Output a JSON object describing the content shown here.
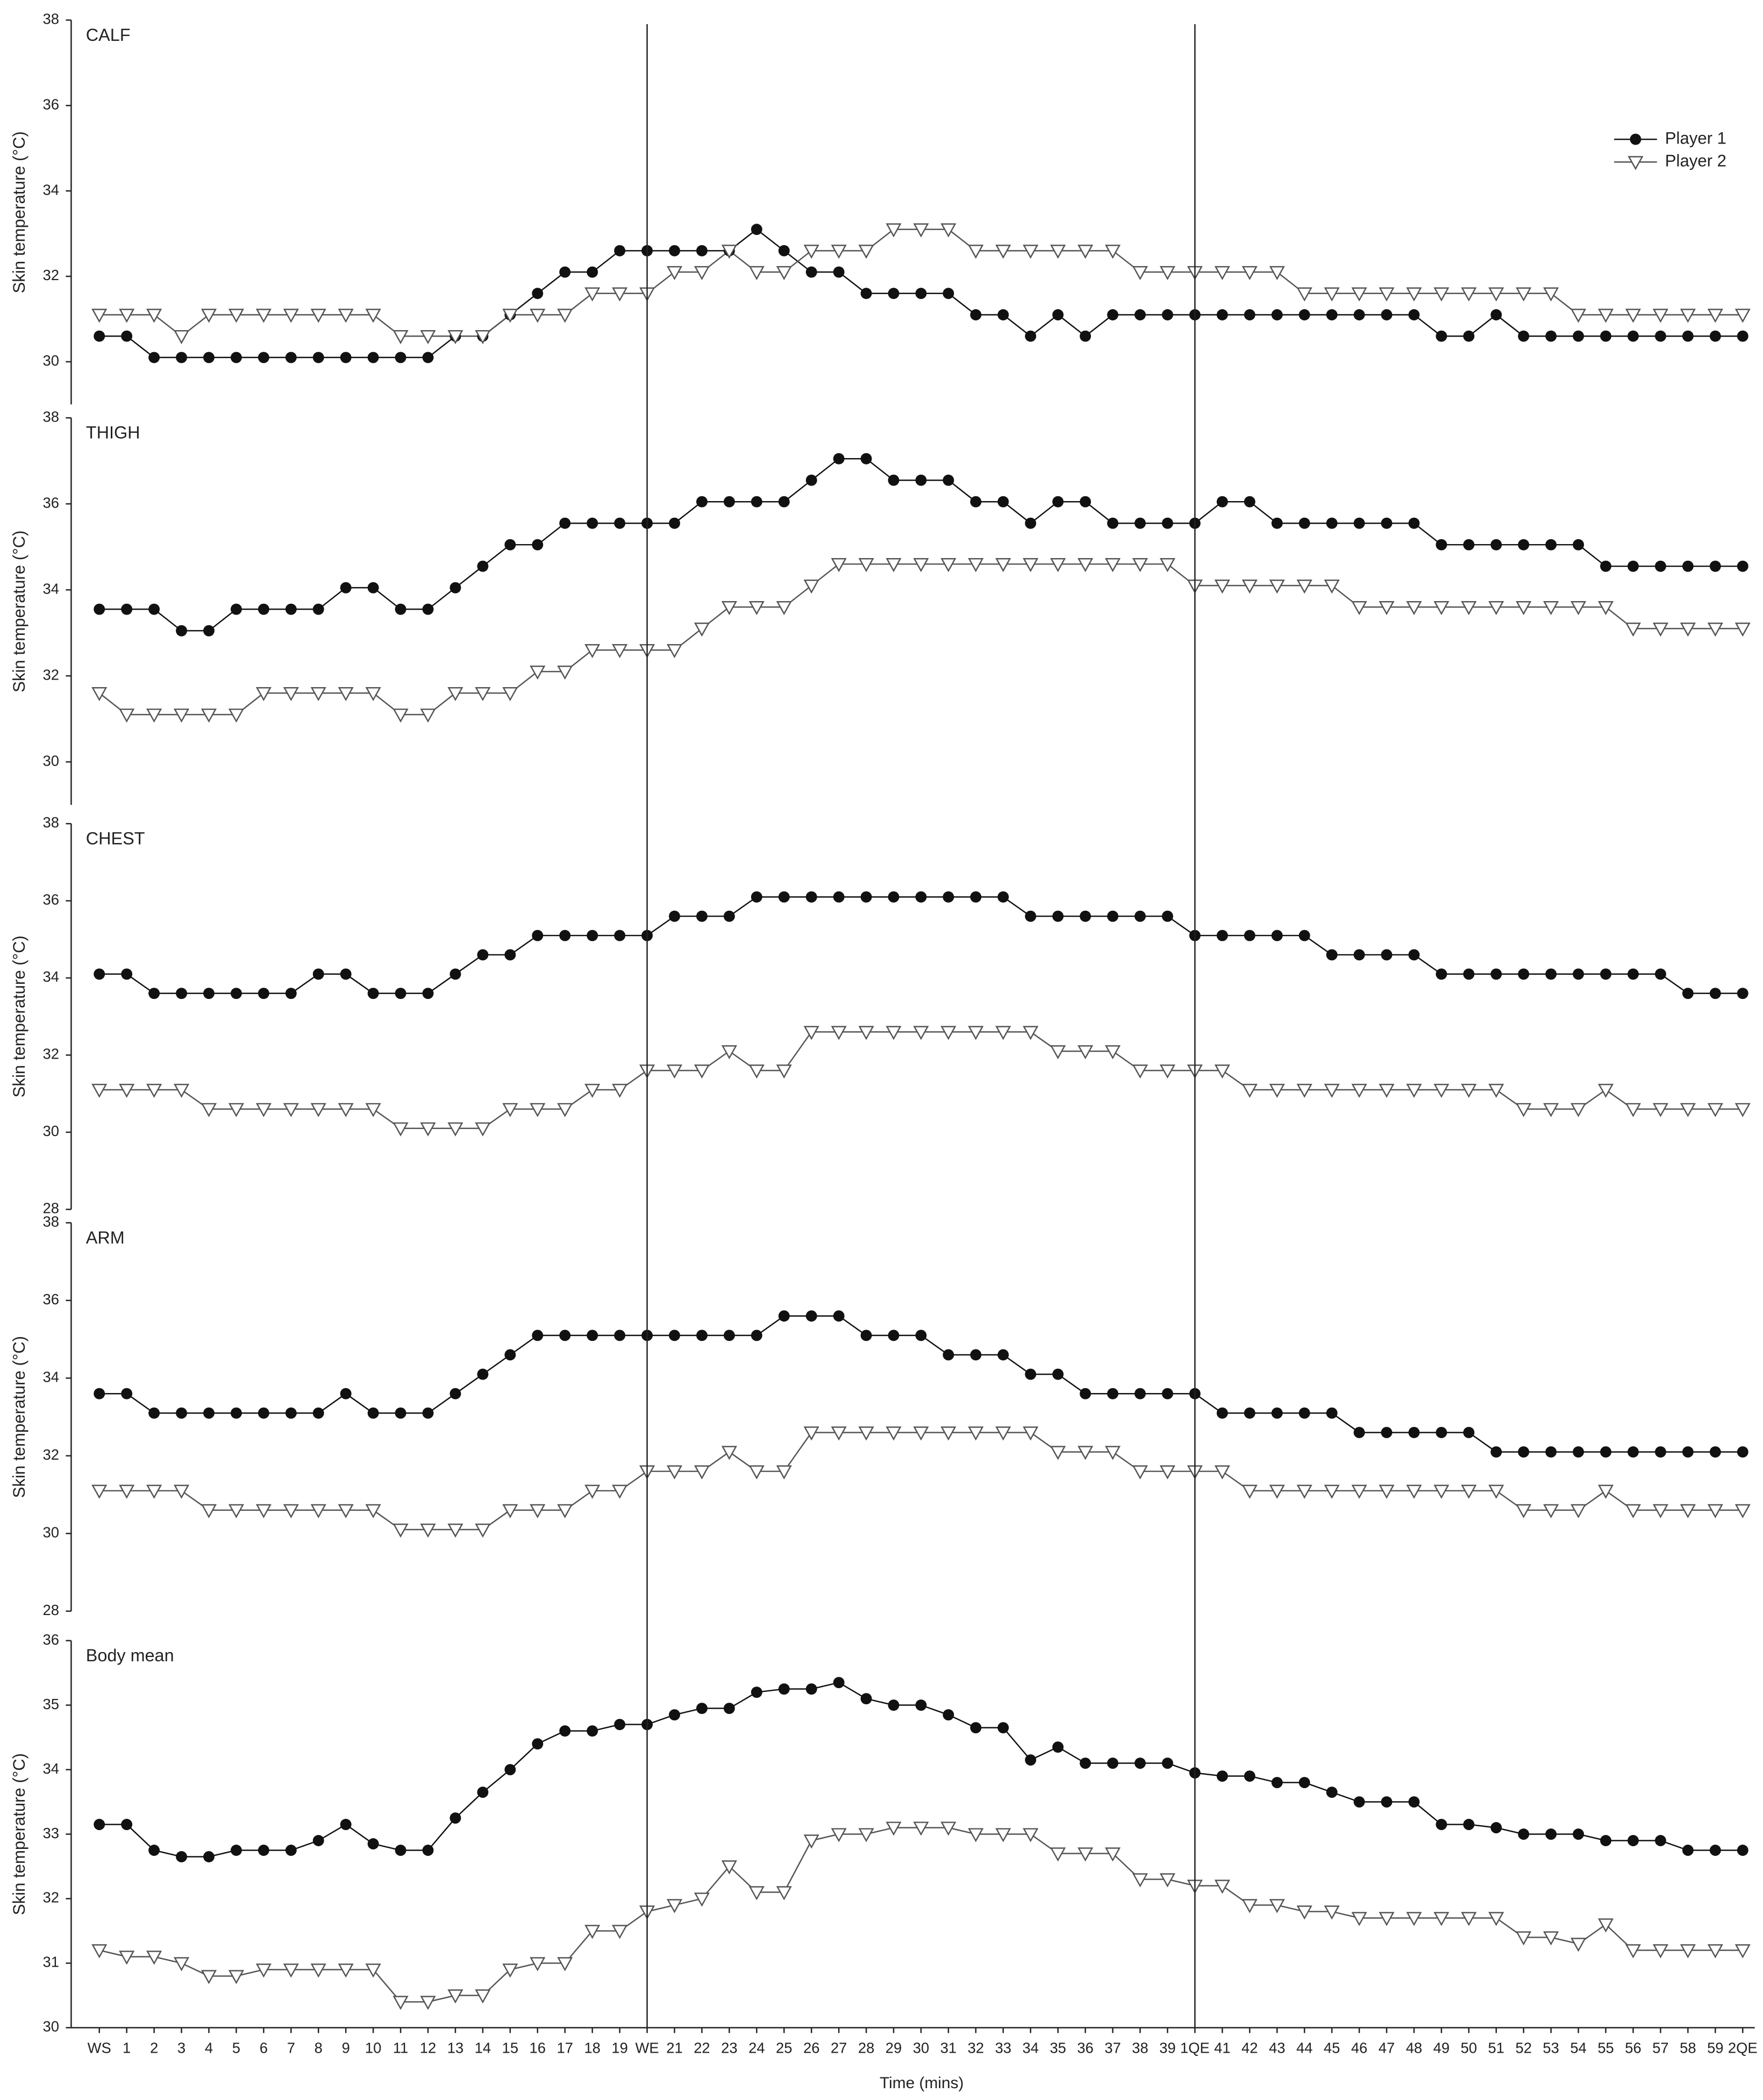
{
  "chart_data": {
    "type": "line",
    "x_label": "Time (mins)",
    "y_label": "Skin temperature (°C)",
    "legend": "upper right",
    "categories": [
      "WS",
      "1",
      "2",
      "3",
      "4",
      "5",
      "6",
      "7",
      "8",
      "9",
      "10",
      "11",
      "12",
      "13",
      "14",
      "15",
      "16",
      "17",
      "18",
      "19",
      "WE",
      "21",
      "22",
      "23",
      "24",
      "25",
      "26",
      "27",
      "28",
      "29",
      "30",
      "31",
      "32",
      "33",
      "34",
      "35",
      "36",
      "37",
      "38",
      "39",
      "1QE",
      "41",
      "42",
      "43",
      "44",
      "45",
      "46",
      "47",
      "48",
      "49",
      "50",
      "51",
      "52",
      "53",
      "54",
      "55",
      "56",
      "57",
      "58",
      "59",
      "2QE"
    ],
    "series": [
      {
        "name": "Player 1",
        "color": "#111111",
        "marker": "circle"
      },
      {
        "name": "Player 2",
        "color": "#555555",
        "marker": "triangle-down"
      }
    ],
    "panels": [
      {
        "title": "CALF",
        "ylim": [
          29,
          38
        ],
        "yticks": [
          30,
          32,
          34,
          36,
          38
        ],
        "values": [
          [
            30.6,
            30.6,
            30.1,
            30.1,
            30.1,
            30.1,
            30.1,
            30.1,
            30.1,
            30.1,
            30.1,
            30.1,
            30.1,
            30.6,
            30.6,
            31.1,
            31.6,
            32.1,
            32.1,
            32.6,
            32.6,
            32.6,
            32.6,
            32.6,
            33.1,
            32.6,
            32.1,
            32.1,
            31.6,
            31.6,
            31.6,
            31.6,
            31.1,
            31.1,
            30.6,
            31.1,
            30.6,
            31.1,
            31.1,
            31.1,
            31.1,
            31.1,
            31.1,
            31.1,
            31.1,
            31.1,
            31.1,
            31.1,
            31.1,
            30.6,
            30.6,
            31.1,
            30.6,
            30.6,
            30.6,
            30.6,
            30.6,
            30.6,
            30.6,
            30.6,
            30.6
          ],
          [
            31.1,
            31.1,
            31.1,
            30.6,
            31.1,
            31.1,
            31.1,
            31.1,
            31.1,
            31.1,
            31.1,
            30.6,
            30.6,
            30.6,
            30.6,
            31.1,
            31.1,
            31.1,
            31.6,
            31.6,
            31.6,
            32.1,
            32.1,
            32.6,
            32.1,
            32.1,
            32.6,
            32.6,
            32.6,
            33.1,
            33.1,
            33.1,
            32.6,
            32.6,
            32.6,
            32.6,
            32.6,
            32.6,
            32.1,
            32.1,
            32.1,
            32.1,
            32.1,
            32.1,
            31.6,
            31.6,
            31.6,
            31.6,
            31.6,
            31.6,
            31.6,
            31.6,
            31.6,
            31.6,
            31.1,
            31.1,
            31.1,
            31.1,
            31.1,
            31.1,
            31.1
          ]
        ]
      },
      {
        "title": "THIGH",
        "ylim": [
          29,
          38
        ],
        "yticks": [
          30,
          32,
          34,
          36,
          38
        ],
        "values": [
          [
            33.55,
            33.55,
            33.55,
            33.05,
            33.05,
            33.55,
            33.55,
            33.55,
            33.55,
            34.05,
            34.05,
            33.55,
            33.55,
            34.05,
            34.55,
            35.05,
            35.05,
            35.55,
            35.55,
            35.55,
            35.55,
            35.55,
            36.05,
            36.05,
            36.05,
            36.05,
            36.55,
            37.05,
            37.05,
            36.55,
            36.55,
            36.55,
            36.05,
            36.05,
            35.55,
            36.05,
            36.05,
            35.55,
            35.55,
            35.55,
            35.55,
            36.05,
            36.05,
            35.55,
            35.55,
            35.55,
            35.55,
            35.55,
            35.55,
            35.05,
            35.05,
            35.05,
            35.05,
            35.05,
            35.05,
            34.55,
            34.55,
            34.55,
            34.55,
            34.55,
            34.55
          ],
          [
            31.6,
            31.1,
            31.1,
            31.1,
            31.1,
            31.1,
            31.6,
            31.6,
            31.6,
            31.6,
            31.6,
            31.1,
            31.1,
            31.6,
            31.6,
            31.6,
            32.1,
            32.1,
            32.6,
            32.6,
            32.6,
            32.6,
            33.1,
            33.6,
            33.6,
            33.6,
            34.1,
            34.6,
            34.6,
            34.6,
            34.6,
            34.6,
            34.6,
            34.6,
            34.6,
            34.6,
            34.6,
            34.6,
            34.6,
            34.6,
            34.1,
            34.1,
            34.1,
            34.1,
            34.1,
            34.1,
            33.6,
            33.6,
            33.6,
            33.6,
            33.6,
            33.6,
            33.6,
            33.6,
            33.6,
            33.6,
            33.1,
            33.1,
            33.1,
            33.1,
            33.1
          ]
        ]
      },
      {
        "title": "CHEST",
        "ylim": [
          28,
          38
        ],
        "yticks": [
          28,
          30,
          32,
          34,
          36,
          38
        ],
        "values": [
          [
            34.1,
            34.1,
            33.6,
            33.6,
            33.6,
            33.6,
            33.6,
            33.6,
            34.1,
            34.1,
            33.6,
            33.6,
            33.6,
            34.1,
            34.6,
            34.6,
            35.1,
            35.1,
            35.1,
            35.1,
            35.1,
            35.6,
            35.6,
            35.6,
            36.1,
            36.1,
            36.1,
            36.1,
            36.1,
            36.1,
            36.1,
            36.1,
            36.1,
            36.1,
            35.6,
            35.6,
            35.6,
            35.6,
            35.6,
            35.6,
            35.1,
            35.1,
            35.1,
            35.1,
            35.1,
            34.6,
            34.6,
            34.6,
            34.6,
            34.1,
            34.1,
            34.1,
            34.1,
            34.1,
            34.1,
            34.1,
            34.1,
            34.1,
            33.6,
            33.6,
            33.6
          ],
          [
            31.1,
            31.1,
            31.1,
            31.1,
            30.6,
            30.6,
            30.6,
            30.6,
            30.6,
            30.6,
            30.6,
            30.1,
            30.1,
            30.1,
            30.1,
            30.6,
            30.6,
            30.6,
            31.1,
            31.1,
            31.6,
            31.6,
            31.6,
            32.1,
            31.6,
            31.6,
            32.6,
            32.6,
            32.6,
            32.6,
            32.6,
            32.6,
            32.6,
            32.6,
            32.6,
            32.1,
            32.1,
            32.1,
            31.6,
            31.6,
            31.6,
            31.6,
            31.1,
            31.1,
            31.1,
            31.1,
            31.1,
            31.1,
            31.1,
            31.1,
            31.1,
            31.1,
            30.6,
            30.6,
            30.6,
            31.1,
            30.6,
            30.6,
            30.6,
            30.6,
            30.6
          ]
        ]
      },
      {
        "title": "ARM",
        "ylim": [
          28,
          38
        ],
        "yticks": [
          28,
          30,
          32,
          34,
          36,
          38
        ],
        "values": [
          [
            33.6,
            33.6,
            33.1,
            33.1,
            33.1,
            33.1,
            33.1,
            33.1,
            33.1,
            33.6,
            33.1,
            33.1,
            33.1,
            33.6,
            34.1,
            34.6,
            35.1,
            35.1,
            35.1,
            35.1,
            35.1,
            35.1,
            35.1,
            35.1,
            35.1,
            35.6,
            35.6,
            35.6,
            35.1,
            35.1,
            35.1,
            34.6,
            34.6,
            34.6,
            34.1,
            34.1,
            33.6,
            33.6,
            33.6,
            33.6,
            33.6,
            33.1,
            33.1,
            33.1,
            33.1,
            33.1,
            32.6,
            32.6,
            32.6,
            32.6,
            32.6,
            32.1,
            32.1,
            32.1,
            32.1,
            32.1,
            32.1,
            32.1,
            32.1,
            32.1,
            32.1
          ],
          [
            31.1,
            31.1,
            31.1,
            31.1,
            30.6,
            30.6,
            30.6,
            30.6,
            30.6,
            30.6,
            30.6,
            30.1,
            30.1,
            30.1,
            30.1,
            30.6,
            30.6,
            30.6,
            31.1,
            31.1,
            31.6,
            31.6,
            31.6,
            32.1,
            31.6,
            31.6,
            32.6,
            32.6,
            32.6,
            32.6,
            32.6,
            32.6,
            32.6,
            32.6,
            32.6,
            32.1,
            32.1,
            32.1,
            31.6,
            31.6,
            31.6,
            31.6,
            31.1,
            31.1,
            31.1,
            31.1,
            31.1,
            31.1,
            31.1,
            31.1,
            31.1,
            31.1,
            30.6,
            30.6,
            30.6,
            31.1,
            30.6,
            30.6,
            30.6,
            30.6,
            30.6
          ]
        ]
      },
      {
        "title": "Body mean",
        "ylim": [
          30,
          36
        ],
        "yticks": [
          30,
          31,
          32,
          33,
          34,
          35,
          36
        ],
        "values": [
          [
            33.15,
            33.15,
            32.75,
            32.65,
            32.65,
            32.75,
            32.75,
            32.75,
            32.9,
            33.15,
            32.85,
            32.75,
            32.75,
            33.25,
            33.65,
            34.0,
            34.4,
            34.6,
            34.6,
            34.7,
            34.7,
            34.85,
            34.95,
            34.95,
            35.2,
            35.25,
            35.25,
            35.35,
            35.1,
            35.0,
            35.0,
            34.85,
            34.65,
            34.65,
            34.15,
            34.35,
            34.1,
            34.1,
            34.1,
            34.1,
            33.95,
            33.9,
            33.9,
            33.8,
            33.8,
            33.65,
            33.5,
            33.5,
            33.5,
            33.15,
            33.15,
            33.1,
            33.0,
            33.0,
            33.0,
            32.9,
            32.9,
            32.9,
            32.75,
            32.75,
            32.75
          ],
          [
            31.2,
            31.1,
            31.1,
            31.0,
            30.8,
            30.8,
            30.9,
            30.9,
            30.9,
            30.9,
            30.9,
            30.4,
            30.4,
            30.5,
            30.5,
            30.9,
            31.0,
            31.0,
            31.5,
            31.5,
            31.8,
            31.9,
            32.0,
            32.5,
            32.1,
            32.1,
            32.9,
            33.0,
            33.0,
            33.1,
            33.1,
            33.1,
            33.0,
            33.0,
            33.0,
            32.7,
            32.7,
            32.7,
            32.3,
            32.3,
            32.2,
            32.2,
            31.9,
            31.9,
            31.8,
            31.8,
            31.7,
            31.7,
            31.7,
            31.7,
            31.7,
            31.7,
            31.4,
            31.4,
            31.3,
            31.6,
            31.2,
            31.2,
            31.2,
            31.2,
            31.2
          ]
        ]
      }
    ]
  }
}
